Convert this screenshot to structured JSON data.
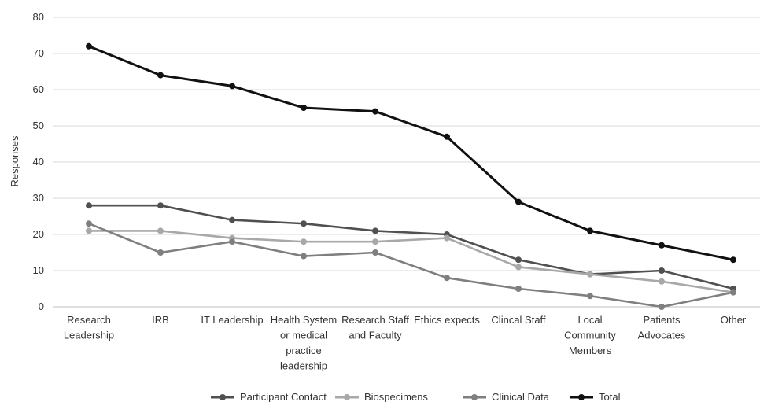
{
  "chart_data": {
    "type": "line",
    "title": "",
    "xlabel": "",
    "ylabel": "Responses",
    "ylim": [
      0,
      80
    ],
    "yticks": [
      0,
      10,
      20,
      30,
      40,
      50,
      60,
      70,
      80
    ],
    "grid": true,
    "legend": "bottom",
    "categories": [
      "Research Leadership",
      "IRB",
      "IT Leadership",
      "Health System or medical practice leadership",
      "Research Staff and Faculty",
      "Ethics expects",
      "Clincal Staff",
      "Local Community Members",
      "Patients Advocates",
      "Other"
    ],
    "series": [
      {
        "name": "Participant Contact",
        "color": "#505050",
        "values": [
          28,
          28,
          24,
          23,
          21,
          20,
          13,
          9,
          10,
          5
        ]
      },
      {
        "name": "Biospecimens",
        "color": "#a8a8a8",
        "values": [
          21,
          21,
          19,
          18,
          18,
          19,
          11,
          9,
          7,
          4
        ]
      },
      {
        "name": "Clinical Data",
        "color": "#7f7f7f",
        "values": [
          23,
          15,
          18,
          14,
          15,
          8,
          5,
          3,
          0,
          4
        ]
      },
      {
        "name": "Total",
        "color": "#111111",
        "values": [
          72,
          64,
          61,
          55,
          54,
          47,
          29,
          21,
          17,
          13
        ]
      }
    ]
  }
}
